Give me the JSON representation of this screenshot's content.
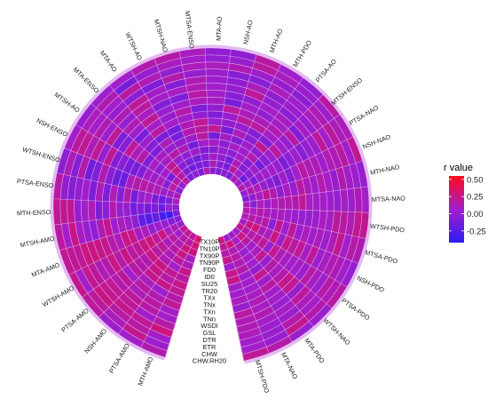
{
  "chart_data": {
    "type": "heatmap",
    "layout": "circular",
    "categories": [
      "MTH-AMO",
      "PTSA-AMO",
      "NSH-AMO",
      "PTSA-AMO",
      "WTSH-AMO",
      "MTA-AMO",
      "MTSH-AMO",
      "MTH-ENSO",
      "PTSA-ENSO",
      "WTSH-ENSO",
      "NSH-ENSO",
      "MTSH-AO",
      "MTA-ENSO",
      "MTA-AO",
      "WTSH-AO",
      "MTSH-NAO",
      "MTSA-ENSO",
      "MTA-AO",
      "NSH-AO",
      "MTH-AO",
      "MTH-PDO",
      "PTSA-AO",
      "MTSH-ENSO",
      "PTSA-NAO",
      "NSH-NAO",
      "MTH-NAO",
      "MTSA-NAO",
      "WTSH-PDO",
      "MTSA-PDO",
      "NSH-PDO",
      "PTSA-PDO",
      "WTSH-NAO",
      "MTA-PDO",
      "MTA-NAO",
      "MTSH-PDO"
    ],
    "rings": [
      "TX10P",
      "TN10P",
      "TX90P",
      "TN90P",
      "FD0",
      "ID0",
      "SU25",
      "TR20",
      "TXx",
      "TNx",
      "TXn",
      "TNn",
      "WSDI",
      "GSL",
      "DTR",
      "ETR",
      "CHW",
      "CHW.RH20"
    ],
    "legend": {
      "title": "r value",
      "ticks": [
        0.5,
        0.25,
        0.0,
        -0.25
      ],
      "tick_labels": [
        "0.50",
        "0.25",
        "0.00",
        "-0.25"
      ],
      "min": -0.42,
      "max": 0.55
    },
    "colors": {
      "low": "#2b1cf5",
      "mid": "#a21eca",
      "high": "#ff0a1c"
    },
    "values": [
      [
        0.31,
        0.2,
        0.23,
        0.22,
        0.03,
        -0.05,
        -0.07,
        -0.05,
        0.11,
        0.12,
        -0.04,
        0.02,
        0.17,
        -0.08,
        -0.02,
        -0.08,
        0.14,
        -0.04,
        -0.04,
        -0.05,
        -0.08,
        0.1,
        0.07,
        0.14,
        -0.01,
        -0.03,
        0.12,
        0.14,
        0.12,
        0.08,
        0.24,
        0.05,
        0.06,
        0.04,
        0.28
      ],
      [
        0.3,
        0.18,
        0.15,
        0.06,
        0.12,
        -0.05,
        -0.35,
        0.05,
        -0.06,
        0.07,
        0.17,
        0.15,
        0.16,
        -0.06,
        -0.14,
        -0.09,
        -0.09,
        0.13,
        -0.04,
        -0.1,
        0.18,
        0.05,
        -0.15,
        0.07,
        0.15,
        0.0,
        -0.04,
        0.1,
        0.17,
        0.26,
        0.15,
        0.27,
        0.08,
        0.29,
        0.2
      ],
      [
        0.26,
        0.27,
        0.13,
        0.19,
        0.1,
        0.02,
        -0.3,
        -0.17,
        -0.15,
        0.04,
        -0.03,
        -0.11,
        0.23,
        -0.04,
        -0.08,
        -0.13,
        -0.04,
        0.07,
        -0.02,
        -0.11,
        0.11,
        -0.05,
        -0.03,
        -0.08,
        0.12,
        0.09,
        0.11,
        0.16,
        0.12,
        0.28,
        0.14,
        0.18,
        0.12,
        0.12,
        0.16
      ],
      [
        0.09,
        0.26,
        0.17,
        0.1,
        0.27,
        0.05,
        -0.18,
        -0.07,
        -0.07,
        0.12,
        0.11,
        0.06,
        0.21,
        0.03,
        -0.01,
        0.05,
        -0.06,
        -0.04,
        0.02,
        -0.03,
        0.08,
        -0.04,
        0.05,
        0.03,
        0.03,
        0.21,
        0.05,
        0.11,
        0.16,
        0.12,
        0.17,
        0.06,
        0.03,
        0.16,
        0.24
      ],
      [
        0.11,
        0.2,
        0.11,
        0.21,
        0.19,
        0.02,
        -0.26,
        -0.12,
        0.07,
        0.13,
        0.05,
        -0.02,
        0.08,
        0.16,
        0.12,
        -0.13,
        0.06,
        0.08,
        -0.02,
        0.09,
        0.05,
        0.15,
        -0.12,
        0.06,
        -0.03,
        0.14,
        0.11,
        0.08,
        -0.02,
        0.1,
        0.2,
        0.1,
        0.08,
        0.12,
        0.05
      ],
      [
        0.25,
        0.06,
        0.14,
        0.17,
        0.28,
        0.11,
        -0.2,
        -0.06,
        0.02,
        0.16,
        0.08,
        0.09,
        0.09,
        0.03,
        0.0,
        0.04,
        0.18,
        -0.12,
        0.09,
        -0.06,
        0.05,
        -0.01,
        -0.03,
        0.06,
        -0.07,
        -0.01,
        0.14,
        0.11,
        0.21,
        0.27,
        0.03,
        0.22,
        0.06,
        0.16,
        0.23
      ],
      [
        0.17,
        0.21,
        0.26,
        0.26,
        0.26,
        0.09,
        -0.02,
        -0.13,
        -0.12,
        0.16,
        -0.06,
        -0.07,
        -0.07,
        0.12,
        -0.11,
        0.14,
        0.18,
        0.21,
        -0.12,
        0.11,
        -0.04,
        0.22,
        0.04,
        0.03,
        0.05,
        0.09,
        0.14,
        0.06,
        0.05,
        0.06,
        0.23,
        0.02,
        0.0,
        0.05,
        0.24
      ],
      [
        0.25,
        0.16,
        0.25,
        0.14,
        0.21,
        0.25,
        0.05,
        0.01,
        0.16,
        0.1,
        -0.11,
        0.16,
        -0.04,
        -0.1,
        -0.11,
        0.12,
        0.22,
        0.03,
        0.0,
        0.01,
        -0.05,
        -0.06,
        0.18,
        -0.08,
        -0.05,
        0.02,
        0.15,
        0.04,
        0.2,
        0.24,
        0.12,
        0.15,
        0.22,
        0.06,
        0.07
      ],
      [
        0.21,
        0.25,
        0.23,
        0.16,
        0.18,
        0.26,
        0.1,
        0.01,
        -0.05,
        -0.15,
        -0.11,
        0.1,
        0.05,
        0.18,
        0.07,
        0.07,
        0.01,
        -0.07,
        0.03,
        0.19,
        0.18,
        0.08,
        0.05,
        -0.02,
        0.07,
        0.18,
        0.21,
        0.02,
        0.05,
        0.18,
        0.09,
        0.09,
        0.05,
        0.06,
        0.06
      ],
      [
        0.16,
        0.04,
        0.1,
        0.17,
        0.25,
        0.12,
        0.06,
        0.15,
        0.12,
        -0.15,
        -0.03,
        0.21,
        -0.1,
        0.08,
        0.02,
        0.15,
        -0.07,
        0.0,
        0.19,
        0.1,
        0.12,
        0.13,
        0.02,
        0.05,
        0.17,
        0.11,
        0.09,
        0.03,
        0.1,
        0.21,
        0.07,
        0.15,
        0.17,
        0.09,
        0.1
      ],
      [
        0.22,
        0.14,
        0.18,
        0.06,
        0.16,
        0.16,
        0.23,
        -0.02,
        -0.07,
        -0.03,
        -0.06,
        -0.04,
        0.05,
        0.21,
        0.03,
        0.05,
        0.1,
        0.09,
        -0.1,
        0.07,
        0.0,
        0.08,
        0.17,
        -0.05,
        0.13,
        0.05,
        0.07,
        0.04,
        0.07,
        0.09,
        0.07,
        0.23,
        0.07,
        0.12,
        0.02
      ],
      [
        0.08,
        0.17,
        0.11,
        0.2,
        0.27,
        0.23,
        0.14,
        -0.06,
        0.1,
        0.14,
        0.21,
        -0.09,
        0.13,
        0.09,
        -0.06,
        -0.07,
        0.16,
        0.07,
        -0.04,
        0.0,
        0.08,
        0.09,
        -0.06,
        0.02,
        0.11,
        0.15,
        0.07,
        0.09,
        0.1,
        0.2,
        0.04,
        0.22,
        0.06,
        0.09,
        0.18
      ],
      [
        0.08,
        0.17,
        0.2,
        0.15,
        0.15,
        0.25,
        -0.02,
        0.12,
        -0.09,
        -0.07,
        0.01,
        0.21,
        0.02,
        0.18,
        0.07,
        0.09,
        0.12,
        0.06,
        0.01,
        0.2,
        0.01,
        -0.02,
        0.08,
        0.04,
        0.05,
        0.08,
        0.05,
        0.07,
        0.04,
        0.05,
        0.17,
        0.02,
        0.03,
        0.13,
        0.12
      ],
      [
        0.17,
        0.06,
        0.2,
        0.22,
        0.12,
        0.26,
        0.02,
        0.06,
        0.06,
        -0.14,
        0.21,
        0.04,
        0.12,
        0.2,
        0.08,
        -0.05,
        0.13,
        0.05,
        0.0,
        0.1,
        -0.01,
        0.04,
        0.01,
        0.2,
        0.12,
        0.02,
        0.01,
        0.2,
        0.12,
        0.09,
        0.09,
        0.19,
        0.08,
        0.08,
        0.13
      ],
      [
        0.28,
        0.21,
        0.24,
        0.22,
        0.2,
        0.27,
        0.09,
        0.01,
        0.02,
        0.15,
        0.12,
        0.14,
        0.03,
        -0.03,
        -0.07,
        0.15,
        0.02,
        0.03,
        -0.04,
        -0.05,
        0.1,
        0.06,
        0.1,
        0.06,
        0.13,
        0.15,
        0.09,
        0.17,
        0.22,
        0.13,
        0.04,
        0.11,
        0.04,
        0.04,
        0.11
      ],
      [
        0.06,
        0.17,
        0.17,
        0.26,
        0.23,
        0.2,
        0.25,
        0.22,
        -0.05,
        -0.05,
        0.21,
        0.07,
        0.06,
        0.18,
        0.12,
        0.01,
        0.11,
        0.1,
        0.13,
        0.04,
        0.01,
        -0.02,
        0.12,
        0.19,
        0.18,
        0.07,
        0.04,
        0.12,
        0.06,
        0.12,
        0.17,
        0.07,
        0.16,
        0.03,
        0.06
      ],
      [
        0.04,
        0.23,
        0.1,
        0.19,
        0.06,
        0.21,
        0.07,
        0.22,
        0.0,
        0.12,
        0.19,
        0.11,
        0.14,
        -0.1,
        0.02,
        0.1,
        0.07,
        0.01,
        0.03,
        0.18,
        0.1,
        0.04,
        0.05,
        0.11,
        0.07,
        0.04,
        0.13,
        0.22,
        0.16,
        0.06,
        0.12,
        0.15,
        0.23,
        0.02,
        0.06
      ],
      [
        0.14,
        0.07,
        0.05,
        0.19,
        0.23,
        0.21,
        0.18,
        0.21,
        0.17,
        -0.02,
        0.07,
        0.01,
        0.04,
        0.06,
        0.14,
        0.16,
        0.1,
        0.0,
        -0.01,
        0.18,
        0.06,
        0.01,
        0.17,
        0.11,
        0.22,
        0.02,
        0.07,
        0.22,
        0.13,
        0.02,
        0.17,
        0.04,
        0.03,
        0.16,
        0.21
      ]
    ]
  }
}
